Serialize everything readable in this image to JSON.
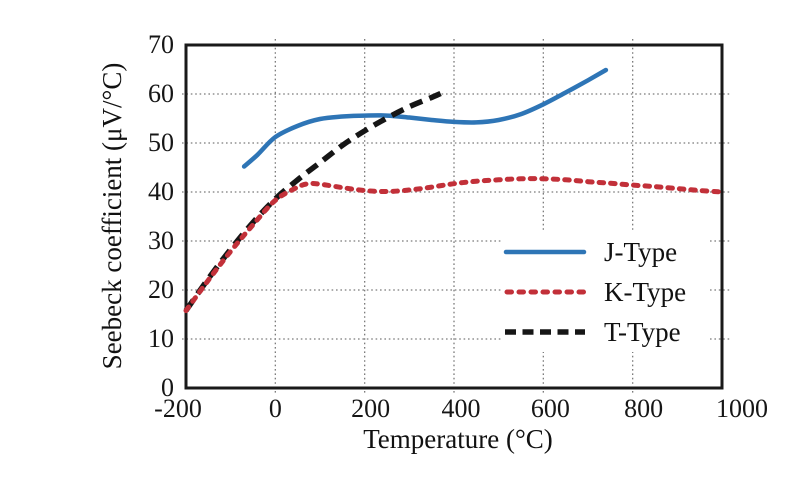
{
  "chart_data": {
    "type": "line",
    "title": "",
    "xlabel": "Temperature (°C)",
    "ylabel": "Seebeck coefficient (μV/°C)",
    "xlim": [
      -200,
      1000
    ],
    "ylim": [
      0,
      70
    ],
    "x_ticks": [
      -200,
      0,
      200,
      400,
      600,
      800,
      1000
    ],
    "y_ticks": [
      0,
      10,
      20,
      30,
      40,
      50,
      60,
      70
    ],
    "x_tick_labels": [
      "-200",
      "0",
      "200",
      "400",
      "600",
      "800",
      "1000"
    ],
    "y_tick_labels": [
      "0",
      "10",
      "20",
      "30",
      "40",
      "50",
      "60",
      "70"
    ],
    "grid": true,
    "grid_style": "dotted",
    "legend_position": "inside lower right",
    "series": [
      {
        "name": "J-Type",
        "color": "#2e75b6",
        "line_style": "solid",
        "points": [
          [
            -70,
            45.2
          ],
          [
            -40,
            47.6
          ],
          [
            0,
            51.2
          ],
          [
            50,
            53.5
          ],
          [
            100,
            54.9
          ],
          [
            150,
            55.4
          ],
          [
            200,
            55.6
          ],
          [
            250,
            55.6
          ],
          [
            300,
            55.2
          ],
          [
            350,
            54.7
          ],
          [
            400,
            54.3
          ],
          [
            450,
            54.2
          ],
          [
            500,
            54.7
          ],
          [
            550,
            55.9
          ],
          [
            600,
            57.9
          ],
          [
            650,
            60.3
          ],
          [
            700,
            62.8
          ],
          [
            740,
            64.9
          ]
        ]
      },
      {
        "name": "K-Type",
        "color": "#c23039",
        "line_style": "dotted",
        "points": [
          [
            -200,
            15.8
          ],
          [
            -150,
            22.0
          ],
          [
            -100,
            27.9
          ],
          [
            -50,
            33.3
          ],
          [
            0,
            38.3
          ],
          [
            50,
            41.0
          ],
          [
            75,
            41.7
          ],
          [
            100,
            41.6
          ],
          [
            150,
            40.9
          ],
          [
            200,
            40.3
          ],
          [
            250,
            40.1
          ],
          [
            300,
            40.4
          ],
          [
            350,
            41.0
          ],
          [
            400,
            41.7
          ],
          [
            450,
            42.2
          ],
          [
            500,
            42.5
          ],
          [
            550,
            42.7
          ],
          [
            600,
            42.7
          ],
          [
            650,
            42.5
          ],
          [
            700,
            42.1
          ],
          [
            750,
            41.8
          ],
          [
            800,
            41.4
          ],
          [
            850,
            41.1
          ],
          [
            900,
            40.7
          ],
          [
            950,
            40.3
          ],
          [
            1000,
            40.0
          ]
        ]
      },
      {
        "name": "T-Type",
        "color": "#161616",
        "line_style": "dashed",
        "points": [
          [
            -200,
            15.8
          ],
          [
            -150,
            22.3
          ],
          [
            -100,
            28.3
          ],
          [
            -50,
            33.8
          ],
          [
            0,
            38.6
          ],
          [
            50,
            42.5
          ],
          [
            100,
            46.0
          ],
          [
            150,
            49.5
          ],
          [
            200,
            52.5
          ],
          [
            250,
            55.1
          ],
          [
            300,
            57.4
          ],
          [
            350,
            59.3
          ],
          [
            370,
            60.1
          ]
        ]
      }
    ]
  }
}
